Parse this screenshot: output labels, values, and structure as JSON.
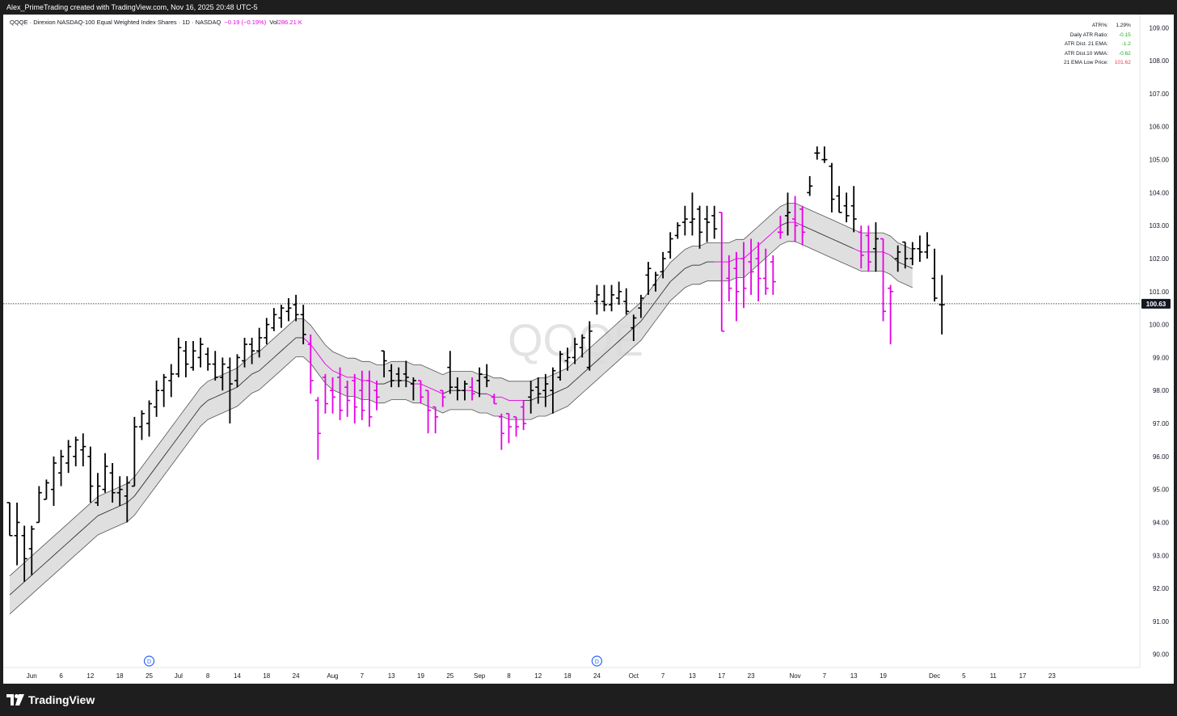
{
  "caption": "Alex_PrimeTrading created with TradingView.com, Nov 16, 2025 20:48 UTC-5",
  "footer": {
    "brand": "TradingView"
  },
  "header": {
    "symbol": "QQQE",
    "separator1": "·",
    "name": "Direxion NASDAQ-100 Equal Weighted Index Shares",
    "separator2": "·",
    "timeframe": "1D",
    "separator3": "·",
    "exchange": "NASDAQ",
    "change": "−0.19 (−0.19%)",
    "volume_label": "Vol",
    "volume_value": "286.21 K"
  },
  "stats": [
    {
      "label": "ATR%:",
      "value": "1.29%",
      "color": "#131722"
    },
    {
      "label": "Daily ATR Ratio:",
      "value": "-0.15",
      "color": "#22ab22"
    },
    {
      "label": "ATR Dist. 21 EMA:",
      "value": "-1.2",
      "color": "#22ab22"
    },
    {
      "label": "ATR Dist.10 WMA:",
      "value": "-0.62",
      "color": "#22ab22"
    },
    {
      "label": "21 EMA Low Price:",
      "value": "101.62",
      "color": "#f23645"
    }
  ],
  "colors": {
    "up_bar": "#000000",
    "down_bar": "#e600e6",
    "band_fill": "#d9d9d9",
    "band_line": "#555555",
    "ema_below": "#333333",
    "ema_above": "#e600e6",
    "axis_text": "#131722",
    "event_marker": "#2962ff"
  },
  "chart_data": {
    "type": "ohlc",
    "watermark": "QQQE",
    "last_price": 100.63,
    "last_price_label": "100.63",
    "ylim": [
      89.6,
      109.4
    ],
    "y_ticks": [
      "90.00",
      "91.00",
      "92.00",
      "93.00",
      "94.00",
      "95.00",
      "96.00",
      "97.00",
      "98.00",
      "99.00",
      "100.00",
      "101.00",
      "102.00",
      "103.00",
      "104.00",
      "105.00",
      "106.00",
      "107.00",
      "108.00",
      "109.00"
    ],
    "x_ticks": [
      {
        "label": "Jun",
        "idx": 3
      },
      {
        "label": "6",
        "idx": 7
      },
      {
        "label": "12",
        "idx": 11
      },
      {
        "label": "18",
        "idx": 15
      },
      {
        "label": "25",
        "idx": 19
      },
      {
        "label": "Jul",
        "idx": 23
      },
      {
        "label": "8",
        "idx": 27
      },
      {
        "label": "14",
        "idx": 31
      },
      {
        "label": "18",
        "idx": 35
      },
      {
        "label": "24",
        "idx": 39
      },
      {
        "label": "Aug",
        "idx": 44
      },
      {
        "label": "7",
        "idx": 48
      },
      {
        "label": "13",
        "idx": 52
      },
      {
        "label": "19",
        "idx": 56
      },
      {
        "label": "25",
        "idx": 60
      },
      {
        "label": "Sep",
        "idx": 64
      },
      {
        "label": "8",
        "idx": 68
      },
      {
        "label": "12",
        "idx": 72
      },
      {
        "label": "18",
        "idx": 76
      },
      {
        "label": "24",
        "idx": 80
      },
      {
        "label": "Oct",
        "idx": 85
      },
      {
        "label": "7",
        "idx": 89
      },
      {
        "label": "13",
        "idx": 93
      },
      {
        "label": "17",
        "idx": 97
      },
      {
        "label": "23",
        "idx": 101
      },
      {
        "label": "Nov",
        "idx": 107
      },
      {
        "label": "7",
        "idx": 111
      },
      {
        "label": "13",
        "idx": 115
      },
      {
        "label": "19",
        "idx": 119
      },
      {
        "label": "Dec",
        "idx": 126
      },
      {
        "label": "5",
        "idx": 130
      },
      {
        "label": "11",
        "idx": 134
      },
      {
        "label": "17",
        "idx": 138
      },
      {
        "label": "23",
        "idx": 142
      }
    ],
    "dividend_marker_label": "D",
    "dividend_markers": [
      {
        "idx": 19
      },
      {
        "idx": 80
      }
    ],
    "bars": [
      [
        94.6,
        93.6,
        94.6,
        93.6
      ],
      [
        93.6,
        94.6,
        92.7,
        94.0
      ],
      [
        93.6,
        93.9,
        92.2,
        92.9
      ],
      [
        93.2,
        93.9,
        92.4,
        93.8
      ],
      [
        94.0,
        95.1,
        94.0,
        94.9
      ],
      [
        94.7,
        95.3,
        94.7,
        95.2
      ],
      [
        95.0,
        96.0,
        94.5,
        95.8
      ],
      [
        95.5,
        96.2,
        95.1,
        96.0
      ],
      [
        95.8,
        96.5,
        95.5,
        96.3
      ],
      [
        96.0,
        96.6,
        95.7,
        96.5
      ],
      [
        96.2,
        96.7,
        95.7,
        96.3
      ],
      [
        96.0,
        96.3,
        94.6,
        95.1
      ],
      [
        94.6,
        95.5,
        94.5,
        95.1
      ],
      [
        95.0,
        96.1,
        94.9,
        95.7
      ],
      [
        95.5,
        95.8,
        94.6,
        94.9
      ],
      [
        94.9,
        95.4,
        94.5,
        95.0
      ],
      [
        94.8,
        95.4,
        94.0,
        95.2
      ],
      [
        95.1,
        97.2,
        95.1,
        96.9
      ],
      [
        96.9,
        97.4,
        96.5,
        97.3
      ],
      [
        97.0,
        97.7,
        96.6,
        97.6
      ],
      [
        97.5,
        98.3,
        97.2,
        98.0
      ],
      [
        98.0,
        98.5,
        97.5,
        98.4
      ],
      [
        98.3,
        98.8,
        97.8,
        98.5
      ],
      [
        98.5,
        99.6,
        98.4,
        99.3
      ],
      [
        99.2,
        99.5,
        98.4,
        98.8
      ],
      [
        98.7,
        99.5,
        98.6,
        99.2
      ],
      [
        99.0,
        99.6,
        98.7,
        99.4
      ],
      [
        99.1,
        99.3,
        98.6,
        98.8
      ],
      [
        98.8,
        99.2,
        98.3,
        98.4
      ],
      [
        98.4,
        99.0,
        98.0,
        98.8
      ],
      [
        98.7,
        99.0,
        97.0,
        98.2
      ],
      [
        98.3,
        99.1,
        98.1,
        99.0
      ],
      [
        98.9,
        99.6,
        98.7,
        99.4
      ],
      [
        99.4,
        99.6,
        98.8,
        99.2
      ],
      [
        99.2,
        99.9,
        99.0,
        99.6
      ],
      [
        99.6,
        100.2,
        99.4,
        100.0
      ],
      [
        99.9,
        100.5,
        99.8,
        100.3
      ],
      [
        100.2,
        100.6,
        99.9,
        100.5
      ],
      [
        100.4,
        100.8,
        100.1,
        100.5
      ],
      [
        100.6,
        100.9,
        100.1,
        100.3
      ],
      [
        100.3,
        100.6,
        99.4,
        99.7
      ],
      [
        99.4,
        99.7,
        97.9,
        98.3
      ],
      [
        97.7,
        97.8,
        95.9,
        96.7
      ],
      [
        98.4,
        98.5,
        97.3,
        97.6
      ],
      [
        98.0,
        98.4,
        97.3,
        97.8
      ],
      [
        98.4,
        98.7,
        97.1,
        97.4
      ],
      [
        98.1,
        98.3,
        97.2,
        97.7
      ],
      [
        98.3,
        98.5,
        97.0,
        97.5
      ],
      [
        98.0,
        98.6,
        97.1,
        97.4
      ],
      [
        98.3,
        98.6,
        96.9,
        97.2
      ],
      [
        98.0,
        98.3,
        97.4,
        97.8
      ],
      [
        99.2,
        99.2,
        98.4,
        98.9
      ],
      [
        98.6,
        98.8,
        98.1,
        98.3
      ],
      [
        98.5,
        98.7,
        98.1,
        98.3
      ],
      [
        98.5,
        98.9,
        98.1,
        98.4
      ],
      [
        98.2,
        98.4,
        97.7,
        98.3
      ],
      [
        98.3,
        98.3,
        97.6,
        97.8
      ],
      [
        98.0,
        98.0,
        96.7,
        97.4
      ],
      [
        97.5,
        97.5,
        96.7,
        97.2
      ],
      [
        98.0,
        98.0,
        97.5,
        97.8
      ],
      [
        98.7,
        99.2,
        97.9,
        98.1
      ],
      [
        98.1,
        98.4,
        97.7,
        98.0
      ],
      [
        98.0,
        98.3,
        97.7,
        98.2
      ],
      [
        98.1,
        98.4,
        97.7,
        97.9
      ],
      [
        98.3,
        98.7,
        97.8,
        98.5
      ],
      [
        98.4,
        98.8,
        98.1,
        98.3
      ],
      [
        97.8,
        97.9,
        97.6,
        97.6
      ],
      [
        97.2,
        97.3,
        96.2,
        96.7
      ],
      [
        97.3,
        97.3,
        96.4,
        96.9
      ],
      [
        97.2,
        97.2,
        96.6,
        96.9
      ],
      [
        97.5,
        97.7,
        96.8,
        97.0
      ],
      [
        97.8,
        98.3,
        97.3,
        98.0
      ],
      [
        98.1,
        98.4,
        97.6,
        97.9
      ],
      [
        98.0,
        98.5,
        97.5,
        98.2
      ],
      [
        98.0,
        98.7,
        97.3,
        98.6
      ],
      [
        98.4,
        99.2,
        98.3,
        99.1
      ],
      [
        98.9,
        99.3,
        98.6,
        99.0
      ],
      [
        99.0,
        99.6,
        98.8,
        99.4
      ],
      [
        99.3,
        99.7,
        99.0,
        99.6
      ],
      [
        98.7,
        100.1,
        98.6,
        99.8
      ],
      [
        100.7,
        101.2,
        100.3,
        100.9
      ],
      [
        100.7,
        101.2,
        100.4,
        100.6
      ],
      [
        100.6,
        101.2,
        100.4,
        100.9
      ],
      [
        100.8,
        101.3,
        100.6,
        101.0
      ],
      [
        100.7,
        101.1,
        100.3,
        100.4
      ],
      [
        99.9,
        100.3,
        99.5,
        100.2
      ],
      [
        100.5,
        100.9,
        100.2,
        100.8
      ],
      [
        101.5,
        101.9,
        100.9,
        101.7
      ],
      [
        101.2,
        101.6,
        101.0,
        101.5
      ],
      [
        101.6,
        102.2,
        101.4,
        102.0
      ],
      [
        102.2,
        102.8,
        102.0,
        102.6
      ],
      [
        102.7,
        103.1,
        102.6,
        103.0
      ],
      [
        103.1,
        103.6,
        102.7,
        103.2
      ],
      [
        103.1,
        104.0,
        102.7,
        103.2
      ],
      [
        103.5,
        103.6,
        102.3,
        102.8
      ],
      [
        103.2,
        103.6,
        102.5,
        103.1
      ],
      [
        103.3,
        103.6,
        102.6,
        102.9
      ],
      [
        103.4,
        103.4,
        99.8,
        99.8
      ],
      [
        101.4,
        102.1,
        100.7,
        101.1
      ],
      [
        101.7,
        102.2,
        100.1,
        101.0
      ],
      [
        102.0,
        102.5,
        100.5,
        101.1
      ],
      [
        101.9,
        102.6,
        100.9,
        101.6
      ],
      [
        102.0,
        102.5,
        100.7,
        101.4
      ],
      [
        101.4,
        102.3,
        100.9,
        101.1
      ],
      [
        101.9,
        102.1,
        100.9,
        101.3
      ],
      [
        102.8,
        103.3,
        102.6,
        102.8
      ],
      [
        103.3,
        104.0,
        102.7,
        103.4
      ],
      [
        103.2,
        103.9,
        102.5,
        103.0
      ],
      [
        103.5,
        103.6,
        102.4,
        102.8
      ],
      [
        104.0,
        104.5,
        103.9,
        104.2
      ],
      [
        105.2,
        105.4,
        105.0,
        105.2
      ],
      [
        105.0,
        105.4,
        104.9,
        105.0
      ],
      [
        104.8,
        104.9,
        103.4,
        103.8
      ],
      [
        103.9,
        104.2,
        103.4,
        103.4
      ],
      [
        103.6,
        104.0,
        103.1,
        103.3
      ],
      [
        103.6,
        104.2,
        102.8,
        103.2
      ],
      [
        102.8,
        103.0,
        101.7,
        102.1
      ],
      [
        102.7,
        103.0,
        101.6,
        101.9
      ],
      [
        102.3,
        103.1,
        101.6,
        102.6
      ],
      [
        102.6,
        102.6,
        100.1,
        100.4
      ],
      [
        101.1,
        101.2,
        99.4,
        101.0
      ],
      [
        102.0,
        102.4,
        101.6,
        102.2
      ],
      [
        102.5,
        102.5,
        101.7,
        102.0
      ],
      [
        102.0,
        102.5,
        101.8,
        102.3
      ],
      [
        102.3,
        102.7,
        101.9,
        102.2
      ],
      [
        102.2,
        102.8,
        102.0,
        102.4
      ],
      [
        101.4,
        102.3,
        100.7,
        100.8
      ],
      [
        100.6,
        101.5,
        99.7,
        100.6
      ]
    ],
    "ema": [
      91.8,
      92.0,
      92.2,
      92.4,
      92.6,
      92.8,
      93.0,
      93.2,
      93.4,
      93.6,
      93.8,
      94.0,
      94.2,
      94.3,
      94.4,
      94.5,
      94.6,
      94.8,
      95.1,
      95.4,
      95.7,
      96.0,
      96.3,
      96.6,
      96.9,
      97.2,
      97.5,
      97.7,
      97.8,
      97.9,
      98.0,
      98.1,
      98.3,
      98.5,
      98.6,
      98.8,
      99.0,
      99.2,
      99.4,
      99.6,
      99.6,
      99.4,
      99.1,
      98.8,
      98.6,
      98.5,
      98.4,
      98.4,
      98.3,
      98.3,
      98.2,
      98.2,
      98.3,
      98.3,
      98.3,
      98.2,
      98.2,
      98.1,
      98.0,
      97.9,
      98.0,
      98.0,
      98.0,
      98.0,
      97.9,
      97.9,
      97.8,
      97.8,
      97.7,
      97.7,
      97.7,
      97.7,
      97.8,
      97.8,
      97.9,
      98.0,
      98.1,
      98.3,
      98.5,
      98.7,
      98.9,
      99.1,
      99.3,
      99.5,
      99.7,
      99.9,
      100.1,
      100.4,
      100.7,
      101.0,
      101.3,
      101.5,
      101.7,
      101.8,
      101.8,
      101.9,
      101.9,
      101.9,
      101.9,
      102.0,
      102.0,
      102.2,
      102.4,
      102.6,
      102.8,
      103.0,
      103.1,
      103.1,
      103.0,
      102.9,
      102.8,
      102.7,
      102.6,
      102.5,
      102.4,
      102.3,
      102.2,
      102.2,
      102.2,
      102.2,
      102.1,
      101.9,
      101.8,
      101.7
    ],
    "band_half_width": 0.58
  }
}
